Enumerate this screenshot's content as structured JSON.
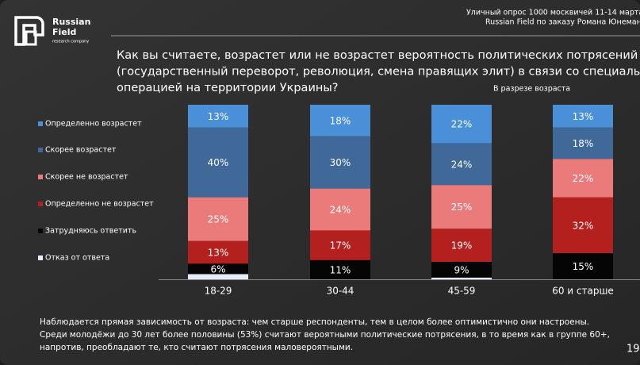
{
  "header": {
    "brand": "Russian",
    "brand2": "Field",
    "tagline": "research company",
    "survey": "Уличный опрос 1000 москвичей 11-14 марта",
    "client": "Russian Field по заказу Романа Юнемана"
  },
  "chart_data": {
    "type": "stacked_bar",
    "title": [
      "Как вы считаете, возрастет или не возрастет вероятность политических потрясений в России",
      "(государственный переворот, революция, смена правящих элит) в связи со специальной военной",
      "операцией на территории Украины?"
    ],
    "subtitle": "В разрезе возраста",
    "categories": [
      "18-29",
      "30-44",
      "45-59",
      "60 и старше"
    ],
    "legend": "left",
    "series": [
      {
        "name": "Определенно возрастет",
        "color": "#4a90d9",
        "values": [
          13,
          18,
          22,
          13
        ],
        "value_labels": [
          "13%",
          "18%",
          "22%",
          "13%"
        ]
      },
      {
        "name": "Скорее возрастет",
        "color": "#40699a",
        "values": [
          40,
          30,
          24,
          18
        ],
        "value_labels": [
          "40%",
          "30%",
          "24%",
          "18%"
        ]
      },
      {
        "name": "Скорее не возрастет",
        "color": "#eb7b7b",
        "values": [
          25,
          24,
          25,
          22
        ],
        "value_labels": [
          "25%",
          "24%",
          "25%",
          "22%"
        ]
      },
      {
        "name": "Определенно не возрастет",
        "color": "#b3201e",
        "values": [
          13,
          17,
          19,
          32
        ],
        "value_labels": [
          "13%",
          "17%",
          "19%",
          "32%"
        ]
      },
      {
        "name": "Затрудняюсь ответить",
        "color": "#050505",
        "values": [
          6,
          11,
          9,
          15
        ],
        "value_labels": [
          "6%",
          "11%",
          "9%",
          "15%"
        ]
      },
      {
        "name": "Отказ от ответа",
        "color": "#e6edf8",
        "values": [
          3,
          0,
          1,
          0
        ]
      }
    ]
  },
  "footer": {
    "text": [
      "Наблюдается прямая зависимость от возраста: чем старше респонденты, тем в целом более оптимистично они настроены.",
      "Среди молодёжи до 30 лет более половины (53%) считают вероятными политические потрясения, в то время как в  группе 60+,",
      "напротив, преобладают те, кто считают потрясения маловероятными."
    ],
    "page": "19"
  }
}
